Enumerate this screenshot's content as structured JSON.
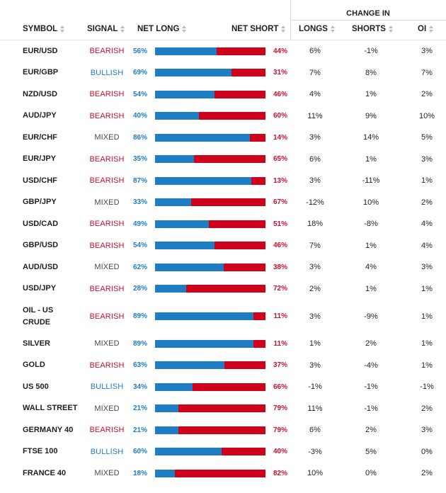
{
  "group_header": {
    "label": "CHANGE IN"
  },
  "columns": {
    "symbol": "SYMBOL",
    "signal": "SIGNAL",
    "net_long": "NET LONG",
    "net_short": "NET SHORT",
    "longs": "LONGS",
    "shorts": "SHORTS",
    "oi": "OI"
  },
  "colors": {
    "long": "#1f7dc4",
    "short": "#d0021b",
    "bearish": "#c8102e",
    "bullish": "#1f7dc4",
    "mixed": "#4a4a4a"
  },
  "rows": [
    {
      "symbol": "EUR/USD",
      "signal": "BEARISH",
      "net_long": "56%",
      "net_short": "44%",
      "long_fraction": 0.56,
      "longs": "6%",
      "shorts": "-1%",
      "oi": "3%"
    },
    {
      "symbol": "EUR/GBP",
      "signal": "BULLISH",
      "net_long": "69%",
      "net_short": "31%",
      "long_fraction": 0.69,
      "longs": "7%",
      "shorts": "8%",
      "oi": "7%"
    },
    {
      "symbol": "NZD/USD",
      "signal": "BEARISH",
      "net_long": "54%",
      "net_short": "46%",
      "long_fraction": 0.54,
      "longs": "4%",
      "shorts": "1%",
      "oi": "2%"
    },
    {
      "symbol": "AUD/JPY",
      "signal": "BEARISH",
      "net_long": "40%",
      "net_short": "60%",
      "long_fraction": 0.4,
      "longs": "11%",
      "shorts": "9%",
      "oi": "10%"
    },
    {
      "symbol": "EUR/CHF",
      "signal": "MIXED",
      "net_long": "86%",
      "net_short": "14%",
      "long_fraction": 0.86,
      "longs": "3%",
      "shorts": "14%",
      "oi": "5%"
    },
    {
      "symbol": "EUR/JPY",
      "signal": "BEARISH",
      "net_long": "35%",
      "net_short": "65%",
      "long_fraction": 0.35,
      "longs": "6%",
      "shorts": "1%",
      "oi": "3%"
    },
    {
      "symbol": "USD/CHF",
      "signal": "BEARISH",
      "net_long": "87%",
      "net_short": "13%",
      "long_fraction": 0.87,
      "longs": "3%",
      "shorts": "-11%",
      "oi": "1%"
    },
    {
      "symbol": "GBP/JPY",
      "signal": "MIXED",
      "net_long": "33%",
      "net_short": "67%",
      "long_fraction": 0.33,
      "longs": "-12%",
      "shorts": "10%",
      "oi": "2%"
    },
    {
      "symbol": "USD/CAD",
      "signal": "BEARISH",
      "net_long": "49%",
      "net_short": "51%",
      "long_fraction": 0.49,
      "longs": "18%",
      "shorts": "-8%",
      "oi": "4%"
    },
    {
      "symbol": "GBP/USD",
      "signal": "BEARISH",
      "net_long": "54%",
      "net_short": "46%",
      "long_fraction": 0.54,
      "longs": "7%",
      "shorts": "1%",
      "oi": "4%"
    },
    {
      "symbol": "AUD/USD",
      "signal": "MIXED",
      "net_long": "62%",
      "net_short": "38%",
      "long_fraction": 0.62,
      "longs": "3%",
      "shorts": "4%",
      "oi": "3%"
    },
    {
      "symbol": "USD/JPY",
      "signal": "BEARISH",
      "net_long": "28%",
      "net_short": "72%",
      "long_fraction": 0.28,
      "longs": "2%",
      "shorts": "1%",
      "oi": "1%"
    },
    {
      "symbol": "OIL - US CRUDE",
      "signal": "BEARISH",
      "net_long": "89%",
      "net_short": "11%",
      "long_fraction": 0.89,
      "longs": "3%",
      "shorts": "-9%",
      "oi": "1%"
    },
    {
      "symbol": "SILVER",
      "signal": "MIXED",
      "net_long": "89%",
      "net_short": "11%",
      "long_fraction": 0.89,
      "longs": "1%",
      "shorts": "2%",
      "oi": "1%"
    },
    {
      "symbol": "GOLD",
      "signal": "BEARISH",
      "net_long": "63%",
      "net_short": "37%",
      "long_fraction": 0.63,
      "longs": "3%",
      "shorts": "-4%",
      "oi": "1%"
    },
    {
      "symbol": "US 500",
      "signal": "BULLISH",
      "net_long": "34%",
      "net_short": "66%",
      "long_fraction": 0.34,
      "longs": "-1%",
      "shorts": "-1%",
      "oi": "-1%"
    },
    {
      "symbol": "WALL STREET",
      "signal": "MIXED",
      "net_long": "21%",
      "net_short": "79%",
      "long_fraction": 0.21,
      "longs": "11%",
      "shorts": "-1%",
      "oi": "2%"
    },
    {
      "symbol": "GERMANY 40",
      "signal": "BEARISH",
      "net_long": "21%",
      "net_short": "79%",
      "long_fraction": 0.21,
      "longs": "6%",
      "shorts": "2%",
      "oi": "3%"
    },
    {
      "symbol": "FTSE 100",
      "signal": "BULLISH",
      "net_long": "60%",
      "net_short": "40%",
      "long_fraction": 0.6,
      "longs": "-3%",
      "shorts": "5%",
      "oi": "0%"
    },
    {
      "symbol": "FRANCE 40",
      "signal": "MIXED",
      "net_long": "18%",
      "net_short": "82%",
      "long_fraction": 0.18,
      "longs": "10%",
      "shorts": "0%",
      "oi": "2%"
    }
  ]
}
